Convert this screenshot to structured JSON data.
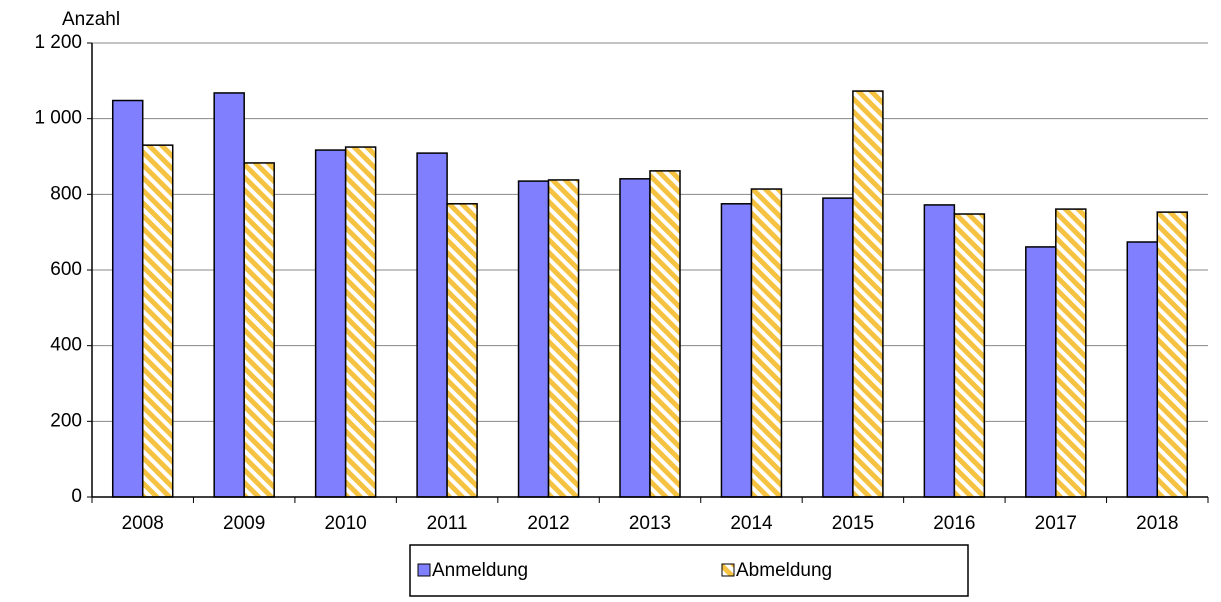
{
  "chart_data": {
    "type": "bar",
    "y_axis_label": "Anzahl",
    "categories": [
      "2008",
      "2009",
      "2010",
      "2011",
      "2012",
      "2013",
      "2014",
      "2015",
      "2016",
      "2017",
      "2018"
    ],
    "series": [
      {
        "name": "Anmeldung",
        "color": "#8080ff",
        "values": [
          1048,
          1068,
          917,
          909,
          835,
          841,
          775,
          790,
          772,
          661,
          674
        ]
      },
      {
        "name": "Abmeldung",
        "color": "#f5c242",
        "hatch": true,
        "values": [
          930,
          883,
          925,
          775,
          838,
          862,
          814,
          1073,
          748,
          761,
          753
        ]
      }
    ],
    "ylim": [
      0,
      1200
    ],
    "yticks": [
      0,
      200,
      400,
      600,
      800,
      {
        "value": 1000,
        "label": "1 000"
      },
      {
        "value": 1200,
        "label": "1 200"
      }
    ],
    "grid": true,
    "legend": "bottom"
  }
}
